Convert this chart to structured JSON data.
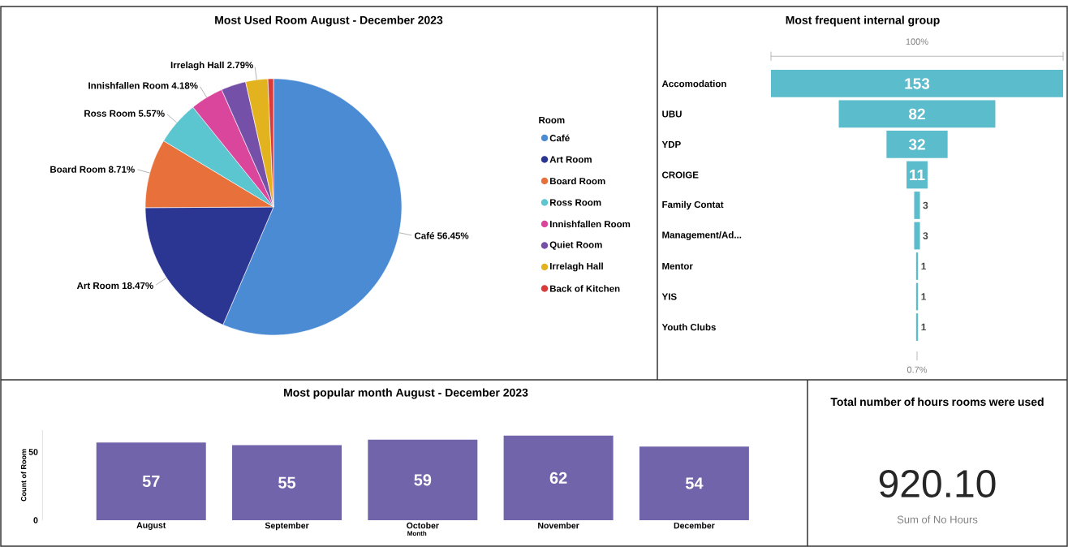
{
  "chart_data": [
    {
      "type": "pie",
      "title": "Most Used Room August - December 2023",
      "legend": "right",
      "legend_title": "Room",
      "categories": [
        "Café",
        "Art Room",
        "Board Room",
        "Ross Room",
        "Innishfallen Room",
        "Quiet Room",
        "Irrelagh Hall",
        "Back of Kitchen"
      ],
      "values": [
        56.45,
        18.47,
        8.71,
        5.57,
        4.18,
        3.14,
        2.79,
        0.7
      ],
      "value_labels": [
        "56.45%",
        "18.47%",
        "8.71%",
        "5.57%",
        "4.18%",
        null,
        "2.79%",
        null
      ],
      "colors": [
        "#4a8bd4",
        "#2b3592",
        "#e8703a",
        "#5bc6d0",
        "#d9469c",
        "#7550a8",
        "#e3b21f",
        "#d93a3a"
      ]
    },
    {
      "type": "other",
      "title": "Most frequent internal group",
      "data_labels": true,
      "color": "#5bbccc",
      "categories": [
        "Accomodation",
        "UBU",
        "YDP",
        "CROIGE",
        "Family Contat",
        "Management/Ad...",
        "Mentor",
        "YIS",
        "Youth Clubs"
      ],
      "values": [
        153,
        82,
        32,
        11,
        3,
        3,
        1,
        1,
        1
      ],
      "annotations": [
        "100%",
        "0.7%"
      ]
    },
    {
      "type": "bar",
      "title": "Most popular month August - December 2023",
      "xlabel": "Month",
      "ylabel": "Count of Room",
      "color": "#7264ab",
      "data_labels": true,
      "categories": [
        "August",
        "September",
        "October",
        "November",
        "December"
      ],
      "values": [
        57,
        55,
        59,
        62,
        54
      ],
      "ylim": [
        0,
        66
      ],
      "yticks": [
        0,
        50
      ]
    },
    {
      "type": "other",
      "title": "Total number of hours rooms were used",
      "annotations": [
        "920.10",
        "Sum of No Hours"
      ]
    }
  ]
}
